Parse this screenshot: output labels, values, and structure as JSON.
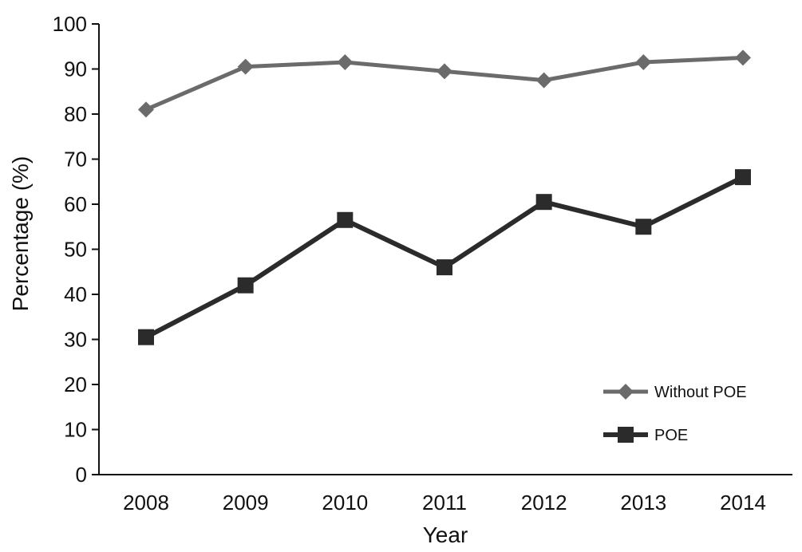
{
  "chart_data": {
    "type": "line",
    "title": "",
    "xlabel": "Year",
    "ylabel": "Percentage (%)",
    "categories": [
      "2008",
      "2009",
      "2010",
      "2011",
      "2012",
      "2013",
      "2014"
    ],
    "ylim": [
      0,
      100
    ],
    "yticks": [
      "0",
      "10",
      "20",
      "30",
      "40",
      "50",
      "60",
      "70",
      "80",
      "90",
      "100"
    ],
    "grid": false,
    "legend_position": "bottom-right",
    "series": [
      {
        "name": "Without POE",
        "values": [
          81,
          90.5,
          91.5,
          89.5,
          87.5,
          91.5,
          92.5
        ],
        "marker": "diamond",
        "color": "#6b6b6b"
      },
      {
        "name": "POE",
        "values": [
          30.5,
          42,
          56.5,
          46,
          60.5,
          55,
          66
        ],
        "marker": "square",
        "color": "#2b2b2b"
      }
    ]
  }
}
